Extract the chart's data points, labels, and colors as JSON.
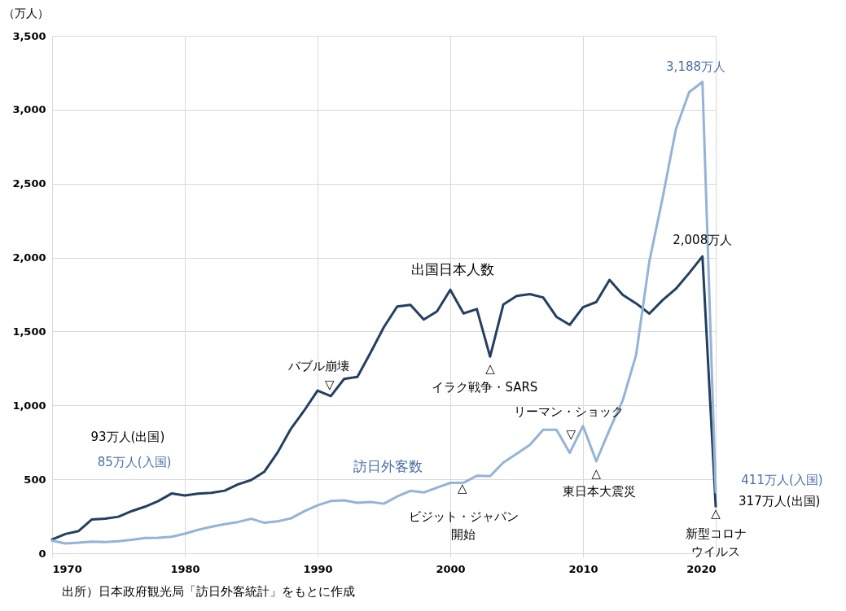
{
  "chart_data": {
    "type": "line",
    "ylabel": "（万人）",
    "x": [
      1970,
      1971,
      1972,
      1973,
      1974,
      1975,
      1976,
      1977,
      1978,
      1979,
      1980,
      1981,
      1982,
      1983,
      1984,
      1985,
      1986,
      1987,
      1988,
      1989,
      1990,
      1991,
      1992,
      1993,
      1994,
      1995,
      1996,
      1997,
      1998,
      1999,
      2000,
      2001,
      2002,
      2003,
      2004,
      2005,
      2006,
      2007,
      2008,
      2009,
      2010,
      2011,
      2012,
      2013,
      2014,
      2015,
      2016,
      2017,
      2018,
      2019,
      2020
    ],
    "series": [
      {
        "color": "#243f60",
        "values": [
          93,
          130,
          150,
          229,
          234,
          247,
          285,
          315,
          353,
          404,
          391,
          403,
          409,
          423,
          466,
          495,
          552,
          683,
          843,
          966,
          1100,
          1063,
          1179,
          1193,
          1358,
          1530,
          1669,
          1680,
          1581,
          1636,
          1782,
          1622,
          1652,
          1330,
          1683,
          1740,
          1753,
          1730,
          1599,
          1545,
          1664,
          1699,
          1849,
          1747,
          1690,
          1621,
          1712,
          1789,
          1895,
          2008,
          317
        ]
      },
      {
        "color": "#95b3d7",
        "values": [
          85,
          66,
          72,
          78,
          76,
          81,
          91,
          103,
          104,
          111,
          132,
          158,
          179,
          197,
          211,
          233,
          206,
          216,
          236,
          284,
          324,
          353,
          358,
          341,
          347,
          335,
          384,
          422,
          411,
          444,
          476,
          477,
          524,
          521,
          614,
          673,
          733,
          835,
          835,
          679,
          861,
          622,
          836,
          1036,
          1341,
          1974,
          2404,
          2869,
          3119,
          3188,
          411
        ]
      }
    ],
    "xlim": [
      1970,
      2020
    ],
    "xticks": [
      1970,
      1980,
      1990,
      2000,
      2010,
      2020
    ],
    "ylim": [
      0,
      3500
    ],
    "yticks": [
      0,
      500,
      {
        "value": 1000,
        "label": "1,000"
      },
      {
        "value": 1500,
        "label": "1,500"
      },
      {
        "value": 2000,
        "label": "2,000"
      },
      {
        "value": 2500,
        "label": "2,500"
      },
      {
        "value": 3000,
        "label": "3,000"
      },
      {
        "value": 3500,
        "label": "3,500"
      }
    ],
    "grid": true,
    "annotations": [
      "出国日本人数",
      "訪日外客数",
      "3,188万人",
      "2,008万人",
      "93万人(出国)",
      "85万人(入国)",
      "411万人(入国)",
      "317万人(出国)",
      "バブル崩壊",
      "▽",
      "△",
      "イラク戦争・SARS",
      "リーマン・ショック",
      "▽",
      "△",
      "東日本大震災",
      "△",
      "ビジット・ジャパン開始",
      "△",
      "新型コロナウイルス",
      "出所）日本政府観光局「訪日外客統計」をもとに作成"
    ]
  }
}
